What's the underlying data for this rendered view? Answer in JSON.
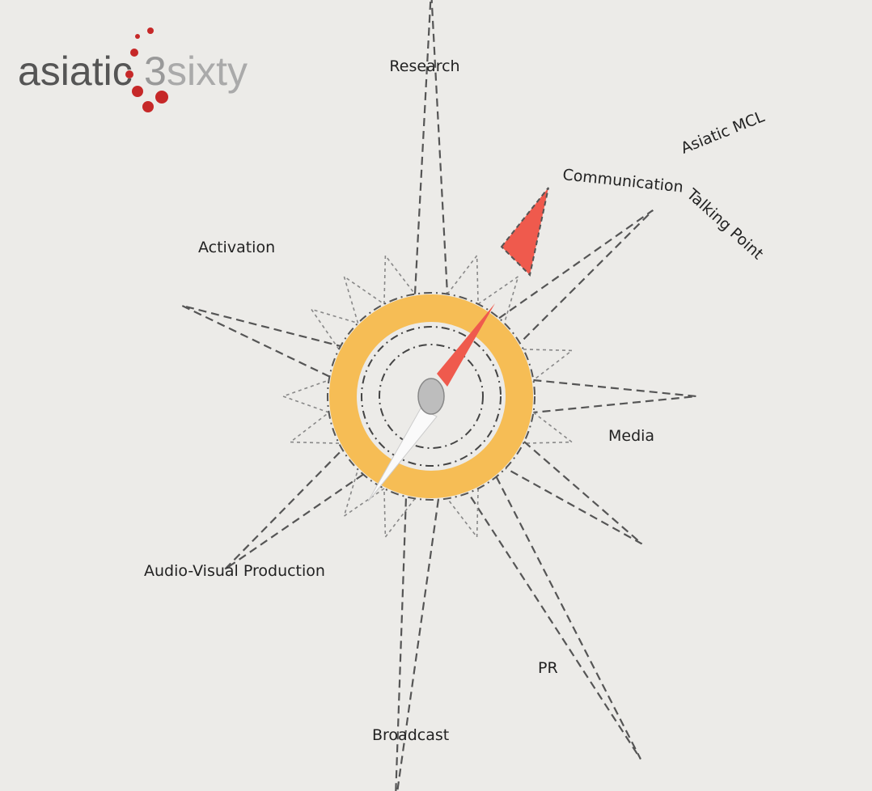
{
  "logo": {
    "name": "asiatic",
    "number": "3",
    "suffix": "sixty"
  },
  "labels": {
    "research": "Research",
    "communication": "Communication",
    "asiatic_mcl": "Asiatic MCL",
    "talking_point": "Talking Point",
    "activation": "Activation",
    "media": "Media",
    "audio_visual": "Audio-Visual Production",
    "pr": "PR",
    "broadcast": "Broadcast"
  }
}
